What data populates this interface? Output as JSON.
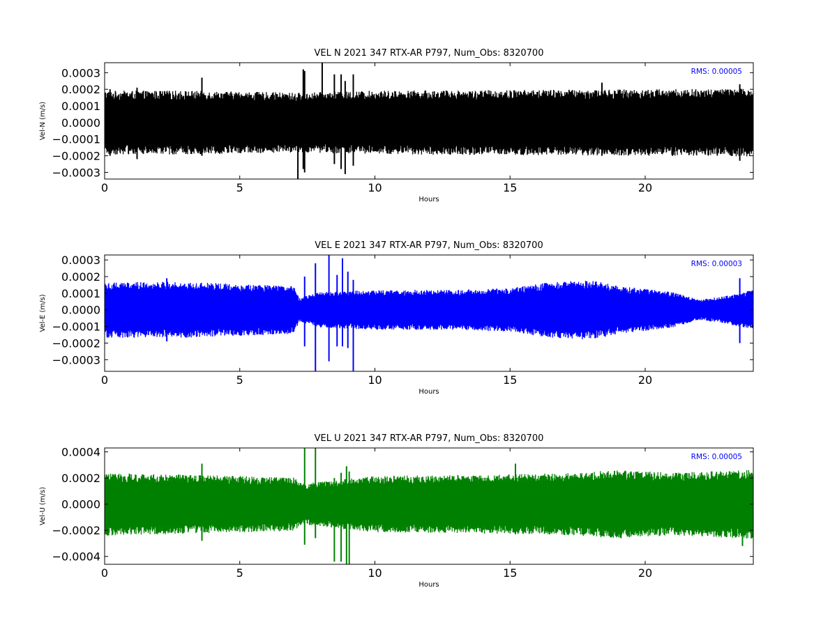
{
  "figure": {
    "colors": {
      "background": "#ffffff",
      "axes": "#000000",
      "rms_text": "#0000ff"
    }
  },
  "chart_data": [
    {
      "type": "line",
      "title": "VEL N 2021 347 RTX-AR  P797, Num_Obs: 8320700",
      "xlabel": "Hours",
      "ylabel": "Vel-N (m/s)",
      "xlim": [
        0,
        24
      ],
      "ylim": [
        -0.00034,
        0.00036
      ],
      "xticks": [
        0,
        5,
        10,
        15,
        20
      ],
      "xtick_labels": [
        "0",
        "5",
        "10",
        "15",
        "20"
      ],
      "yticks": [
        -0.0003,
        -0.0002,
        -0.0001,
        0.0,
        0.0001,
        0.0002,
        0.0003
      ],
      "ytick_labels": [
        "−0.0003",
        "−0.0002",
        "−0.0001",
        "0.0000",
        "0.0001",
        "0.0002",
        "0.0003"
      ],
      "grid": false,
      "annotation": "RMS:  0.00005",
      "series": [
        {
          "color": "#000000",
          "envelope": [
            [
              0,
              0.00016
            ],
            [
              3,
              0.00016
            ],
            [
              7,
              0.00015
            ],
            [
              7.3,
              0.00015
            ],
            [
              10,
              0.00016
            ],
            [
              24,
              0.00017
            ]
          ],
          "spikes": [
            [
              0.2,
              0.0002,
              -0.0002
            ],
            [
              1.2,
              0.00021,
              -0.00022
            ],
            [
              3.6,
              0.00027,
              -0.0002
            ],
            [
              7.15,
              5e-05,
              -0.00034
            ],
            [
              7.35,
              0.00032,
              -0.00028
            ],
            [
              7.4,
              0.00031,
              -0.0003
            ],
            [
              8.05,
              0.00036,
              -0.00016
            ],
            [
              8.5,
              0.00029,
              -0.00025
            ],
            [
              8.75,
              0.00029,
              -0.00028
            ],
            [
              8.9,
              0.00025,
              -0.00031
            ],
            [
              9.2,
              0.00029,
              -0.00026
            ],
            [
              18.4,
              0.00024,
              -0.0002
            ],
            [
              23.5,
              0.00023,
              -0.00023
            ]
          ]
        }
      ]
    },
    {
      "type": "line",
      "title": "VEL E 2021 347 RTX-AR  P797, Num_Obs: 8320700",
      "xlabel": "Hours",
      "ylabel": "Vel-E (m/s)",
      "xlim": [
        0,
        24
      ],
      "ylim": [
        -0.00037,
        0.00033
      ],
      "xticks": [
        0,
        5,
        10,
        15,
        20
      ],
      "xtick_labels": [
        "0",
        "5",
        "10",
        "15",
        "20"
      ],
      "yticks": [
        -0.0003,
        -0.0002,
        -0.0001,
        0.0,
        0.0001,
        0.0002,
        0.0003
      ],
      "ytick_labels": [
        "−0.0003",
        "−0.0002",
        "−0.0001",
        "0.0000",
        "0.0001",
        "0.0002",
        "0.0003"
      ],
      "grid": false,
      "annotation": "RMS:  0.00003",
      "series": [
        {
          "color": "#0000ff",
          "envelope": [
            [
              0,
              0.00014
            ],
            [
              3,
              0.00014
            ],
            [
              7,
              0.00012
            ],
            [
              7.2,
              6e-05
            ],
            [
              8,
              9e-05
            ],
            [
              10,
              0.0001
            ],
            [
              13,
              0.0001
            ],
            [
              15,
              0.00011
            ],
            [
              16.5,
              0.00014
            ],
            [
              18,
              0.00015
            ],
            [
              19,
              0.00012
            ],
            [
              21,
              9e-05
            ],
            [
              22,
              5e-05
            ],
            [
              23,
              7e-05
            ],
            [
              24,
              0.0001
            ]
          ],
          "spikes": [
            [
              2.3,
              0.00019,
              -0.00019
            ],
            [
              7.4,
              0.0002,
              -0.00022
            ],
            [
              7.8,
              0.00028,
              -0.00037
            ],
            [
              8.3,
              0.00033,
              -0.00031
            ],
            [
              8.6,
              0.00021,
              -0.00022
            ],
            [
              8.8,
              0.00031,
              -0.00022
            ],
            [
              9.0,
              0.00023,
              -0.00023
            ],
            [
              9.2,
              0.00018,
              -0.00037
            ],
            [
              23.5,
              0.00019,
              -0.0002
            ]
          ]
        }
      ]
    },
    {
      "type": "line",
      "title": "VEL U 2021 347 RTX-AR  P797, Num_Obs: 8320700",
      "xlabel": "Hours",
      "ylabel": "Vel-U (m/s)",
      "xlim": [
        0,
        24
      ],
      "ylim": [
        -0.00046,
        0.00043
      ],
      "xticks": [
        0,
        5,
        10,
        15,
        20
      ],
      "xtick_labels": [
        "0",
        "5",
        "10",
        "15",
        "20"
      ],
      "yticks": [
        -0.0004,
        -0.0002,
        0.0,
        0.0002,
        0.0004
      ],
      "ytick_labels": [
        "−0.0004",
        "−0.0002",
        "0.0000",
        "0.0002",
        "0.0004"
      ],
      "grid": false,
      "annotation": "RMS:  0.00005",
      "series": [
        {
          "color": "#008000",
          "envelope": [
            [
              0,
              0.0002
            ],
            [
              5,
              0.00018
            ],
            [
              7,
              0.00017
            ],
            [
              7.3,
              0.00013
            ],
            [
              10,
              0.00018
            ],
            [
              15,
              0.00019
            ],
            [
              17.5,
              0.0002
            ],
            [
              19,
              0.00022
            ],
            [
              21,
              0.0002
            ],
            [
              24,
              0.00022
            ]
          ],
          "spikes": [
            [
              3.6,
              0.00031,
              -0.00028
            ],
            [
              7.4,
              0.00043,
              -0.00031
            ],
            [
              7.8,
              0.00043,
              -0.00026
            ],
            [
              8.5,
              0.0002,
              -0.00044
            ],
            [
              8.75,
              0.00024,
              -0.00044
            ],
            [
              8.95,
              0.00029,
              -0.00046
            ],
            [
              9.05,
              0.00025,
              -0.00046
            ],
            [
              15.2,
              0.00031,
              -0.00023
            ],
            [
              23.6,
              0.00024,
              -0.00032
            ]
          ]
        }
      ]
    }
  ]
}
